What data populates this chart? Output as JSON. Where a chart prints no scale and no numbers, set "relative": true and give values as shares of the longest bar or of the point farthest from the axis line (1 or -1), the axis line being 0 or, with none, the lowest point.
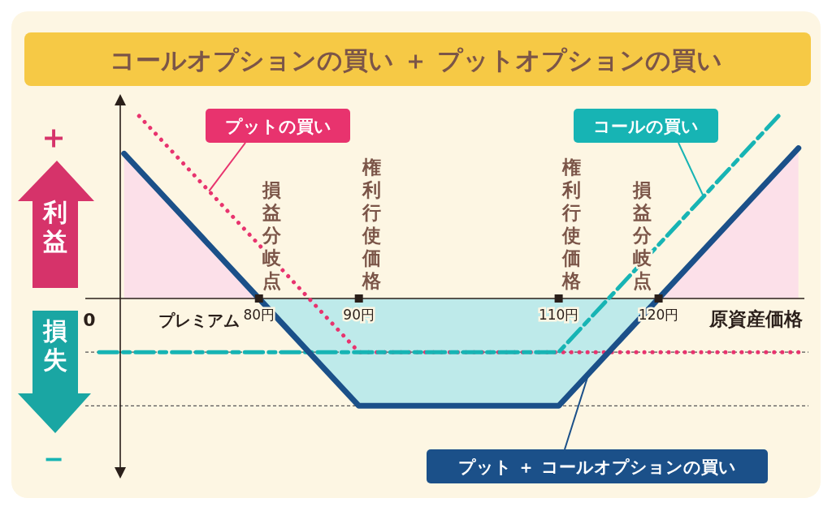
{
  "chart_data": {
    "type": "line",
    "title": "コールオプションの買い ＋ プットオプションの買い",
    "xlabel": "原資産価格",
    "relative": true,
    "legend": false,
    "xlim": [
      64,
      135
    ],
    "xticks": [
      {
        "value": 80,
        "label": "80円"
      },
      {
        "value": 90,
        "label": "90円"
      },
      {
        "value": 110,
        "label": "110円"
      },
      {
        "value": 120,
        "label": "120円"
      }
    ],
    "series": [
      {
        "name": "プット ＋ コールオプションの買い",
        "type": "area",
        "color": "#1b5089",
        "line_style": "solid",
        "x": [
          66.5,
          80,
          90,
          110,
          120,
          134
        ],
        "values": [
          0.794,
          0,
          -0.588,
          -0.588,
          0,
          0.824
        ]
      },
      {
        "name": "プットの買い",
        "color": "#e8336e",
        "line_style": "dotted",
        "x": [
          68,
          90,
          134
        ],
        "values": [
          1,
          -0.294,
          -0.294
        ]
      },
      {
        "name": "コールの買い",
        "color": "#17b4b4",
        "line_style": "dashed",
        "x": [
          64,
          110,
          132
        ],
        "values": [
          -0.294,
          -0.294,
          1
        ]
      }
    ],
    "ref_lines": [
      {
        "axis": "y",
        "value": -0.294,
        "color": "#555555",
        "line_style": "dashed"
      },
      {
        "axis": "y",
        "value": -0.588,
        "color": "#555555",
        "line_style": "dashed"
      }
    ],
    "annotations": [
      "＋",
      "利益",
      "0",
      "損失",
      "－",
      "プレミアム",
      {
        "text": "損益分岐点",
        "x": 80,
        "y": 0
      },
      {
        "text": "権利行使価格",
        "x": 90,
        "y": 0
      },
      {
        "text": "権利行使価格",
        "x": 110,
        "y": 0
      },
      {
        "text": "損益分岐点",
        "x": 120,
        "y": 0
      }
    ]
  }
}
